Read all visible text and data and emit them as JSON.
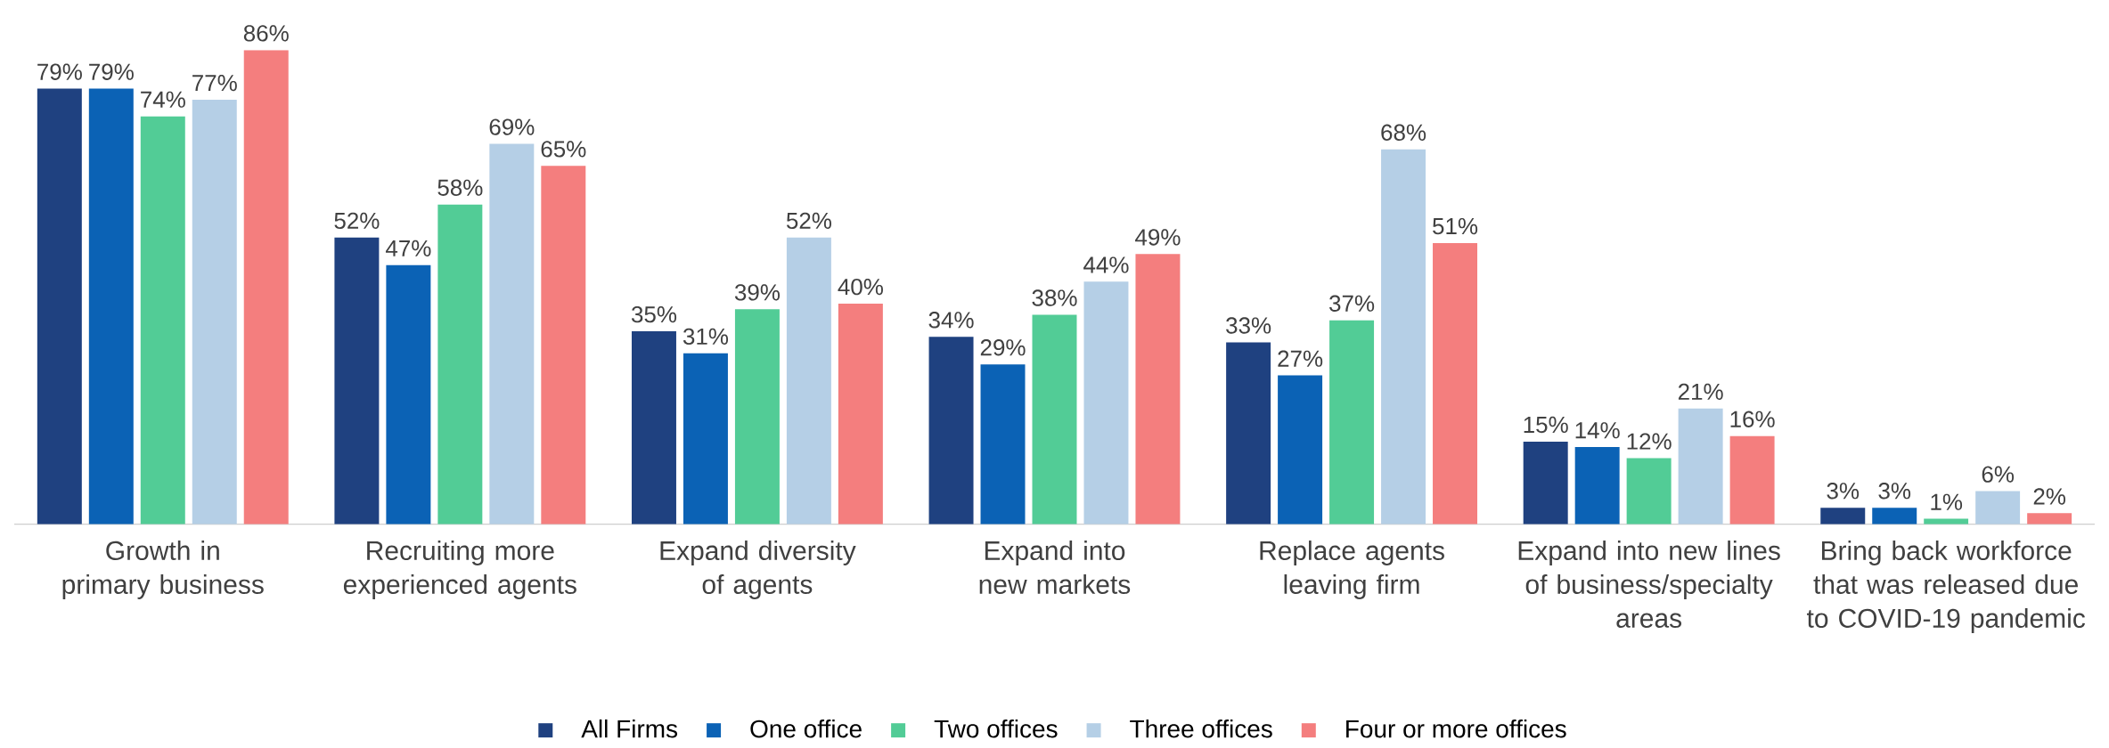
{
  "chart_data": {
    "type": "bar",
    "categories": [
      "Growth in primary business",
      "Recruiting more experienced agents",
      "Expand diversity of agents",
      "Expand into new markets",
      "Replace agents leaving firm",
      "Expand into new lines of business/specialty areas",
      "Bring back workforce that was released due to COVID-19 pandemic"
    ],
    "series": [
      {
        "name": "All Firms",
        "color": "#1f4180",
        "values": [
          79,
          52,
          35,
          34,
          33,
          15,
          3
        ],
        "value_labels": [
          "79%",
          "52%",
          "35%",
          "34%",
          "33%",
          "15%",
          "3%"
        ]
      },
      {
        "name": "One office",
        "color": "#0b62b5",
        "values": [
          79,
          47,
          31,
          29,
          27,
          14,
          3
        ],
        "value_labels": [
          "79%",
          "47%",
          "31%",
          "29%",
          "27%",
          "14%",
          "3%"
        ]
      },
      {
        "name": "Two offices",
        "color": "#52cc96",
        "values": [
          74,
          58,
          39,
          38,
          37,
          12,
          1
        ],
        "value_labels": [
          "74%",
          "58%",
          "39%",
          "38%",
          "37%",
          "12%",
          "1%"
        ]
      },
      {
        "name": "Three offices",
        "color": "#b5cfe6",
        "values": [
          77,
          69,
          52,
          44,
          68,
          21,
          6
        ],
        "value_labels": [
          "77%",
          "69%",
          "52%",
          "44%",
          "68%",
          "21%",
          "6%"
        ]
      },
      {
        "name": "Four or more offices",
        "color": "#f47e7e",
        "values": [
          86,
          65,
          40,
          49,
          51,
          16,
          2
        ],
        "value_labels": [
          "86%",
          "65%",
          "40%",
          "49%",
          "51%",
          "16%",
          "2%"
        ]
      }
    ],
    "legend": "bottom"
  }
}
